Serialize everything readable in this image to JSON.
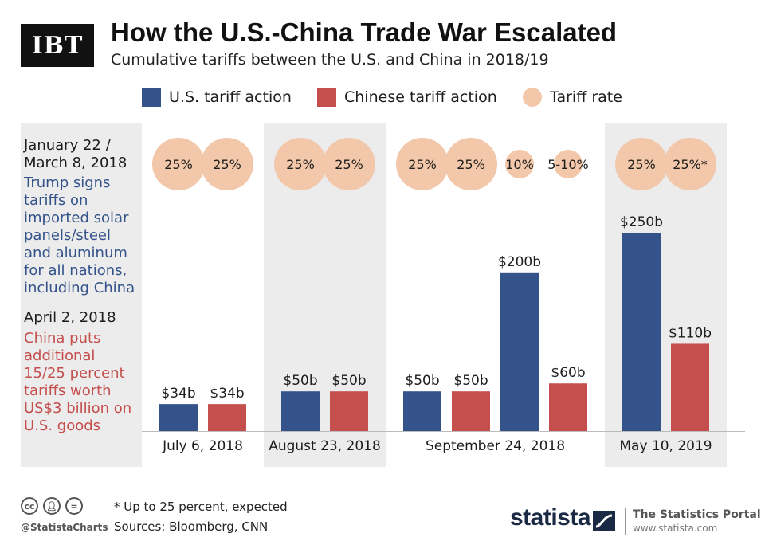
{
  "brand_logo": "IBT",
  "brand": "statista",
  "portal_title": "The Statistics Portal",
  "portal_url": "www.statista.com",
  "handle": "@StatistaCharts",
  "footnote": "* Up to 25 percent, expected",
  "sources": "Sources: Bloomberg, CNN",
  "colors": {
    "us": "#34538a",
    "china": "#c44f4d",
    "rate": "#f2c7aa",
    "panel": "#ececec"
  },
  "side": {
    "date1_line1": "January 22 /",
    "date1_line2": "March 8, 2018",
    "text1": [
      "Trump signs",
      "tariffs on",
      "imported solar",
      "panels/steel",
      "and aluminum",
      "for all nations,",
      "including China"
    ],
    "date2": "April 2, 2018",
    "text2": [
      "China puts",
      "additional",
      "15/25 percent",
      "tariffs worth",
      "US$3 billion on",
      "U.S. goods"
    ]
  },
  "chart_data": {
    "type": "bar",
    "title": "How the U.S.-China Trade War Escalated",
    "subtitle": "Cumulative tariffs between the U.S. and China in 2018/19",
    "legend": [
      "U.S. tariff action",
      "Chinese tariff action",
      "Tariff rate"
    ],
    "groups": [
      {
        "label": "July 6, 2018",
        "shaded": false,
        "bars": [
          {
            "series": "us",
            "value": 34,
            "label": "$34b",
            "rate": "25%",
            "rate_size": "large"
          },
          {
            "series": "china",
            "value": 34,
            "label": "$34b",
            "rate": "25%",
            "rate_size": "large"
          }
        ]
      },
      {
        "label": "August 23, 2018",
        "shaded": true,
        "bars": [
          {
            "series": "us",
            "value": 50,
            "label": "$50b",
            "rate": "25%",
            "rate_size": "large"
          },
          {
            "series": "china",
            "value": 50,
            "label": "$50b",
            "rate": "25%",
            "rate_size": "large"
          }
        ]
      },
      {
        "label": "September 24, 2018",
        "shaded": false,
        "bars": [
          {
            "series": "us",
            "value": 50,
            "label": "$50b",
            "rate": "25%",
            "rate_size": "large"
          },
          {
            "series": "china",
            "value": 50,
            "label": "$50b",
            "rate": "25%",
            "rate_size": "large"
          },
          {
            "series": "us",
            "value": 200,
            "label": "$200b",
            "rate": "10%",
            "rate_size": "small"
          },
          {
            "series": "china",
            "value": 60,
            "label": "$60b",
            "rate": "5-10%",
            "rate_size": "small"
          }
        ]
      },
      {
        "label": "May 10, 2019",
        "shaded": true,
        "bars": [
          {
            "series": "us",
            "value": 250,
            "label": "$250b",
            "rate": "25%",
            "rate_size": "large"
          },
          {
            "series": "china",
            "value": 110,
            "label": "$110b",
            "rate": "25%*",
            "rate_size": "large"
          }
        ]
      }
    ],
    "ylim": [
      0,
      250
    ]
  }
}
